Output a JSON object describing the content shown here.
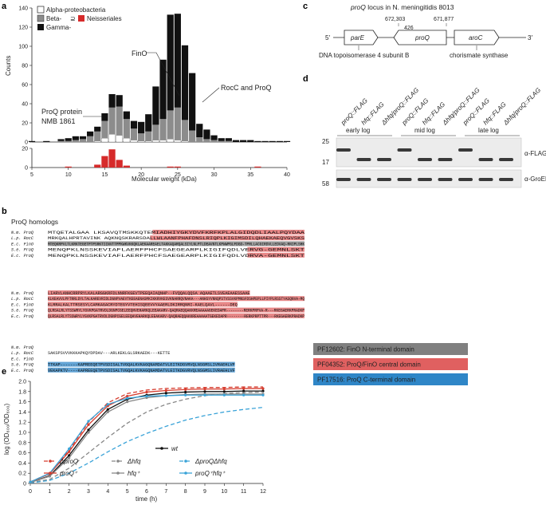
{
  "panels": {
    "a": "a",
    "b": "b",
    "c": "c",
    "d": "d",
    "e": "e"
  },
  "a": {
    "legend": [
      "Alpha-proteobacteria",
      "Beta-",
      "Gamma-",
      "Neisseriales"
    ],
    "legend_sym": "⊇",
    "ylabel": "Counts",
    "xlabel": "Molecular weight (kDa)",
    "yticks_top": [
      "0",
      "20",
      "40",
      "60",
      "80",
      "100",
      "120",
      "140"
    ],
    "yticks_bot": [
      "0",
      "20"
    ],
    "xticks": [
      "5",
      "10",
      "15",
      "20",
      "25",
      "30",
      "35",
      "40"
    ],
    "ann_fino": "FinO",
    "ann_rocc": "RocC and ProQ",
    "ann_proq1": "ProQ protein",
    "ann_proq2": "NMB 1861",
    "colors": {
      "gamma": "#111111",
      "beta": "#8c8c8c",
      "alpha": "#ffffff",
      "neisseria": "#d62a2a"
    }
  },
  "c": {
    "title_pre": "proQ",
    "title_post": " locus in N. meningitidis 8013",
    "five": "5′",
    "three": "3′",
    "genes": [
      "parE",
      "proQ",
      "aroC"
    ],
    "coord1": "672,303",
    "gap": "426",
    "coord2": "671,877",
    "desc1": "DNA topoisomerase 4 subunit B",
    "desc2": "chorismate synthase"
  },
  "d": {
    "lanes": [
      "proQ::FLAG",
      "hfq::FLAG",
      "Δhfq/proQ::FLAG",
      "proQ::FLAG",
      "hfq::FLAG",
      "Δhfq/proQ::FLAG",
      "proQ::FLAG",
      "hfq::FLAG",
      "Δhfq/proQ::FLAG"
    ],
    "phases": [
      "early log",
      "mid log",
      "late log"
    ],
    "mw": [
      "25",
      "17",
      "58"
    ],
    "blot1": "α-FLAG",
    "blot2": "α-GroEL"
  },
  "b": {
    "title": "ProQ homologs",
    "names": [
      "N.m. ProQ",
      "L.p. RocC",
      "E.c. FinO",
      "S.e. ProQ",
      "E.c. ProQ"
    ],
    "block1": [
      "                                          MTQETALGAA                        LKSAVQTMSKKQTEMIADHIYGKYDVFKRFKPLALGIDQDLIAALPQYDAA",
      "                                         MRKQALHPRTAVINK                     AQKNQSKRARSDALLWLAANFPHAFDNSLRIQPLKIGIMSDILQHAEKAEQVGVSKS",
      "MTEQKRPVLTLKRKTEGETPTPSRKTIINVTTPPKWKVKKQKLAEKAAREAELTAKKAQARQALSIYLNLPTLDEAVNTLKPWWPGLFDGD-TPRLLACGIRDVLLEDVAQ-RNIPLSHK",
      "                                                                                MENQPKLNSSKEVIAFLAERFPHCFSAEGEARPLKIGIFQDLVERVG-GEMNLSKT",
      "                                                                                MENQPKLNSSKEVIAFLAERFPHCFSAEGEARPLKIGIFQDLVDRVA-GEMNLSKT"
    ],
    "block2": [
      "LIARVLANHCRRPRYLKALARGGKRFDLNNRFKGEVTPEEQAIAQNHP--FVQQALQQSA AQAAETLSVEAEAAESSAAE",
      "KLKEAVVLPFTRRLDYLTALKAREVRIDLDGNPVAEVTKEEAENASMKIKKRVKESVKNARRQVNAKA---ANHSYVNNQPSTVSSVKPMNSFDSHPEPLLPIYPLRSSTYASQNVA-MQ",
      "KLRRALKALTTRSESYLCAMKAGACRYDTEGYVTEHISQEEVVYAAERLDKIRRQNRI-KAELQAVL------DEQ",
      "QLRSALRLYTSSWRYLYGVKPGATRVDLDGNPCGELEEQHVEHARKQLEEAKARV-QAQRAEQQAKKREAAAAAGEKEDAPR--------RERKPRPVA-R---RKEGAERKPRADKP",
      "QLRSALRLYTSSWRYLYGVKPGATRVDLDGNPCGELEEQHVEHARKQLEEAKARV-QAQRAEQQAKKREAAAAATGEKEDAPR--------RERKPRPTTPR---RKEGAERKPRADKP"
    ],
    "block3": [
      "",
      "SAKSPSVVVKKKAPKQYDPDAV---ARLKEKLGLSRKAEDK---KETTE",
      "",
      "TTKAP-------KAPREEQETPVSDISALTVGQALKVKAGQNAMDATVLEITKDGVRVQLNSGMSLIVRAEHLVF",
      "VEKAPKTV----KAPREEQETPVSDISALTVGQALKVKAGQNAMDATVLEITKDGVRVQLNSGMSLIVRAEHLVF"
    ],
    "domains": [
      {
        "id": "PF12602",
        "name": "FinO N-terminal domain",
        "color": "#808080"
      },
      {
        "id": "PF04352",
        "name": "ProQ/FinO central domain",
        "color": "#e06060"
      },
      {
        "id": "PF17516",
        "name": "ProQ C-terminal domain",
        "color": "#2f86c7"
      }
    ]
  },
  "e": {
    "ylabel": "log (OD₆₀₀/OD₆₀₀)",
    "xlabel": "time (h)",
    "xticks": [
      "0",
      "1",
      "2",
      "3",
      "4",
      "5",
      "6",
      "7",
      "8",
      "9",
      "10",
      "11",
      "12"
    ],
    "yticks": [
      "0",
      "0.2",
      "0.4",
      "0.6",
      "0.8",
      "1.0",
      "1.2",
      "1.4",
      "1.6",
      "1.8",
      "2.0"
    ],
    "legend": [
      "wt",
      "ΔproQ",
      "Δhfq",
      "ΔproQΔhfq",
      "proQ⁺",
      "hfq⁺",
      "proQ⁺hfq⁺"
    ]
  },
  "chart_data": [
    {
      "type": "bar",
      "title": "",
      "xlabel": "Molecular weight (kDa)",
      "ylabel": "Counts",
      "x": [
        5,
        6,
        7,
        8,
        9,
        10,
        11,
        12,
        13,
        14,
        15,
        16,
        17,
        18,
        19,
        20,
        21,
        22,
        23,
        24,
        25,
        26,
        27,
        28,
        29,
        30,
        31,
        32,
        33,
        34,
        35,
        36,
        37,
        38,
        39,
        40
      ],
      "series": [
        {
          "name": "Alpha-proteobacteria",
          "values": [
            0,
            0,
            0,
            0,
            0,
            0,
            0,
            0,
            0,
            1,
            4,
            8,
            7,
            4,
            2,
            1,
            1,
            2,
            2,
            3,
            2,
            1,
            0,
            0,
            0,
            0,
            0,
            0,
            0,
            0,
            0,
            0,
            0,
            0,
            0,
            0
          ]
        },
        {
          "name": "Beta-",
          "values": [
            0,
            0,
            0,
            0,
            1,
            1,
            2,
            3,
            6,
            10,
            18,
            28,
            30,
            20,
            12,
            8,
            10,
            16,
            22,
            30,
            34,
            22,
            12,
            5,
            3,
            2,
            1,
            1,
            0,
            0,
            0,
            0,
            0,
            0,
            0,
            0
          ]
        },
        {
          "name": "Gamma-",
          "values": [
            1,
            0,
            1,
            0,
            2,
            3,
            4,
            3,
            5,
            5,
            8,
            14,
            12,
            8,
            8,
            12,
            18,
            40,
            62,
            100,
            98,
            78,
            60,
            14,
            10,
            5,
            3,
            3,
            2,
            2,
            2,
            1,
            1,
            1,
            1,
            1
          ]
        }
      ],
      "ylim": [
        0,
        140
      ],
      "xlim": [
        5,
        40
      ]
    },
    {
      "type": "bar",
      "xlabel": "Molecular weight (kDa)",
      "x": [
        5,
        6,
        7,
        8,
        9,
        10,
        11,
        12,
        13,
        14,
        15,
        16,
        17,
        18,
        19,
        20,
        21,
        22,
        23,
        24,
        25,
        26,
        27,
        28,
        29,
        30,
        31,
        32,
        33,
        34,
        35,
        36,
        37,
        38,
        39,
        40
      ],
      "series": [
        {
          "name": "Neisseriales",
          "values": [
            0,
            0,
            0,
            0,
            0,
            1,
            0,
            0,
            0,
            3,
            12,
            19,
            8,
            2,
            0,
            0,
            0,
            0,
            0,
            1,
            1,
            0,
            0,
            0,
            0,
            0,
            0,
            0,
            0,
            0,
            0,
            1,
            0,
            0,
            0,
            0
          ]
        }
      ],
      "ylim": [
        0,
        20
      ]
    },
    {
      "type": "line",
      "xlabel": "time (h)",
      "ylabel": "log (OD/OD)",
      "x": [
        0,
        1,
        2,
        3,
        4,
        5,
        6,
        7,
        8,
        9,
        10,
        11,
        12
      ],
      "series": [
        {
          "name": "wt",
          "values": [
            0.02,
            0.15,
            0.55,
            1.05,
            1.45,
            1.65,
            1.73,
            1.77,
            1.79,
            1.8,
            1.8,
            1.81,
            1.81
          ]
        },
        {
          "name": "ΔproQ",
          "values": [
            0.03,
            0.2,
            0.65,
            1.2,
            1.58,
            1.76,
            1.83,
            1.86,
            1.87,
            1.88,
            1.88,
            1.89,
            1.89
          ]
        },
        {
          "name": "Δhfq",
          "values": [
            0.02,
            0.08,
            0.3,
            0.6,
            0.9,
            1.18,
            1.4,
            1.55,
            1.65,
            1.72,
            1.76,
            1.78,
            1.79
          ]
        },
        {
          "name": "ΔproQΔhfq",
          "values": [
            0.01,
            0.06,
            0.2,
            0.4,
            0.62,
            0.82,
            0.98,
            1.12,
            1.24,
            1.33,
            1.4,
            1.45,
            1.49
          ]
        },
        {
          "name": "proQ⁺",
          "values": [
            0.03,
            0.19,
            0.62,
            1.15,
            1.52,
            1.71,
            1.79,
            1.82,
            1.84,
            1.85,
            1.85,
            1.86,
            1.86
          ]
        },
        {
          "name": "hfq⁺",
          "values": [
            0.02,
            0.14,
            0.5,
            1.0,
            1.4,
            1.6,
            1.68,
            1.72,
            1.74,
            1.75,
            1.75,
            1.75,
            1.75
          ]
        },
        {
          "name": "proQ⁺hfq⁺",
          "values": [
            0.03,
            0.2,
            0.68,
            1.22,
            1.55,
            1.67,
            1.71,
            1.72,
            1.73,
            1.73,
            1.73,
            1.73,
            1.73
          ]
        }
      ],
      "ylim": [
        0,
        2.0
      ]
    }
  ]
}
